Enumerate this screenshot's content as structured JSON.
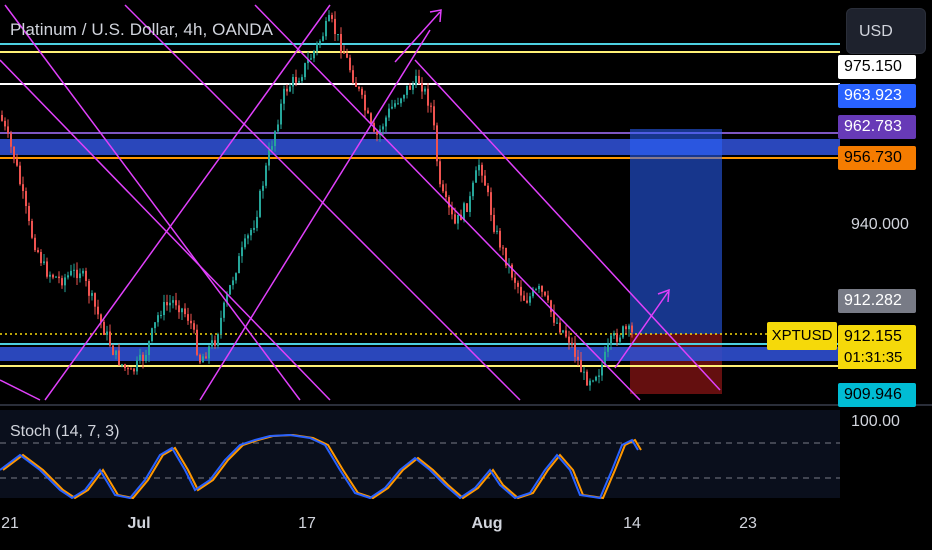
{
  "header": {
    "title": "Platinum / U.S. Dollar, 4h, OANDA",
    "currency_button": "USD"
  },
  "main_chart": {
    "symbol_tag": "XPTUSD",
    "countdown": "01:31:35",
    "y_ticks": [
      {
        "label": "940.000",
        "value": 940.0
      }
    ],
    "price_labels": [
      {
        "label": "975.150",
        "value": 975.15,
        "bg": "#ffffff",
        "fg": "#000000"
      },
      {
        "label": "963.923",
        "value": 963.923,
        "bg": "#2962ff",
        "fg": "#ffffff"
      },
      {
        "label": "962.783",
        "value": 962.783,
        "bg": "#673ab7",
        "fg": "#ffffff"
      },
      {
        "label": "956.730",
        "value": 956.73,
        "bg": "#f57c00",
        "fg": "#000000"
      },
      {
        "label": "912.282",
        "value": 912.282,
        "bg": "#787b86",
        "fg": "#ffffff"
      },
      {
        "label": "912.155",
        "value": 912.155,
        "bg": "#f5d90a",
        "fg": "#000000"
      },
      {
        "label": "909.946",
        "value": 909.946,
        "bg": "#00bcd4",
        "fg": "#000000"
      }
    ]
  },
  "stoch": {
    "title": "Stoch (14, 7, 3)",
    "y_tick": "100.00"
  },
  "x_axis": {
    "ticks": [
      {
        "label": "21",
        "bold": false
      },
      {
        "label": "Jul",
        "bold": true
      },
      {
        "label": "17",
        "bold": false
      },
      {
        "label": "Aug",
        "bold": true
      },
      {
        "label": "14",
        "bold": false
      },
      {
        "label": "23",
        "bold": false
      }
    ]
  },
  "colors": {
    "background": "#000000",
    "up_candle": "#26a69a",
    "down_candle": "#ef5350",
    "trendlines": "#e040fb",
    "stoch_k": "#2962ff",
    "stoch_d": "#ff9800",
    "long_target": "#2962ff",
    "long_stop": "#b71c1c"
  }
}
